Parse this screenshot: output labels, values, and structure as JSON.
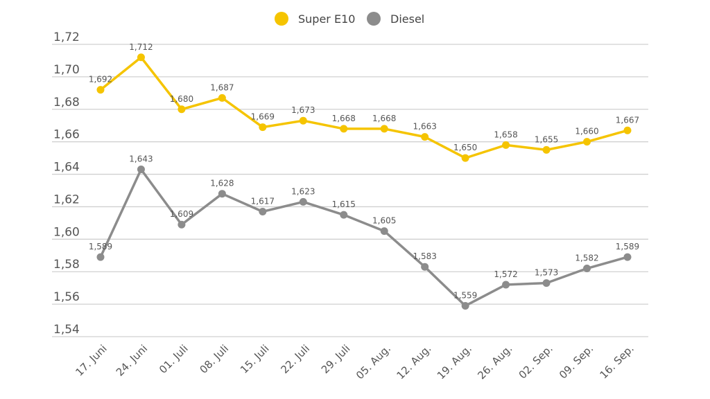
{
  "chart_data": {
    "type": "line",
    "title": "",
    "xlabel": "",
    "ylabel": "",
    "categories": [
      "17. Juni",
      "24. Juni",
      "01. Juli",
      "08. Juli",
      "15. Juli",
      "22. Juli",
      "29. Juli",
      "05. Aug.",
      "12. Aug.",
      "19. Aug.",
      "26. Aug.",
      "02. Sep.",
      "09. Sep.",
      "16. Sep."
    ],
    "ylim": [
      1.54,
      1.72
    ],
    "yticks": [
      "1,54",
      "1,56",
      "1,58",
      "1,60",
      "1,62",
      "1,64",
      "1,66",
      "1,68",
      "1,70",
      "1,72"
    ],
    "grid": true,
    "legend_position": "top",
    "series": [
      {
        "name": "Super E10",
        "color": "#f5c400",
        "values": [
          1.692,
          1.712,
          1.68,
          1.687,
          1.669,
          1.673,
          1.668,
          1.668,
          1.663,
          1.65,
          1.658,
          1.655,
          1.66,
          1.667
        ],
        "labels": [
          "1,692",
          "1,712",
          "1,680",
          "1,687",
          "1,669",
          "1,673",
          "1,668",
          "1,668",
          "1,663",
          "1,650",
          "1,658",
          "1,655",
          "1,660",
          "1,667"
        ]
      },
      {
        "name": "Diesel",
        "color": "#8c8c8c",
        "values": [
          1.589,
          1.643,
          1.609,
          1.628,
          1.617,
          1.623,
          1.615,
          1.605,
          1.583,
          1.559,
          1.572,
          1.573,
          1.582,
          1.589
        ],
        "labels": [
          "1,589",
          "1,643",
          "1,609",
          "1,628",
          "1,617",
          "1,623",
          "1,615",
          "1,605",
          "1,583",
          "1,559",
          "1,572",
          "1,573",
          "1,582",
          "1,589"
        ]
      }
    ]
  }
}
